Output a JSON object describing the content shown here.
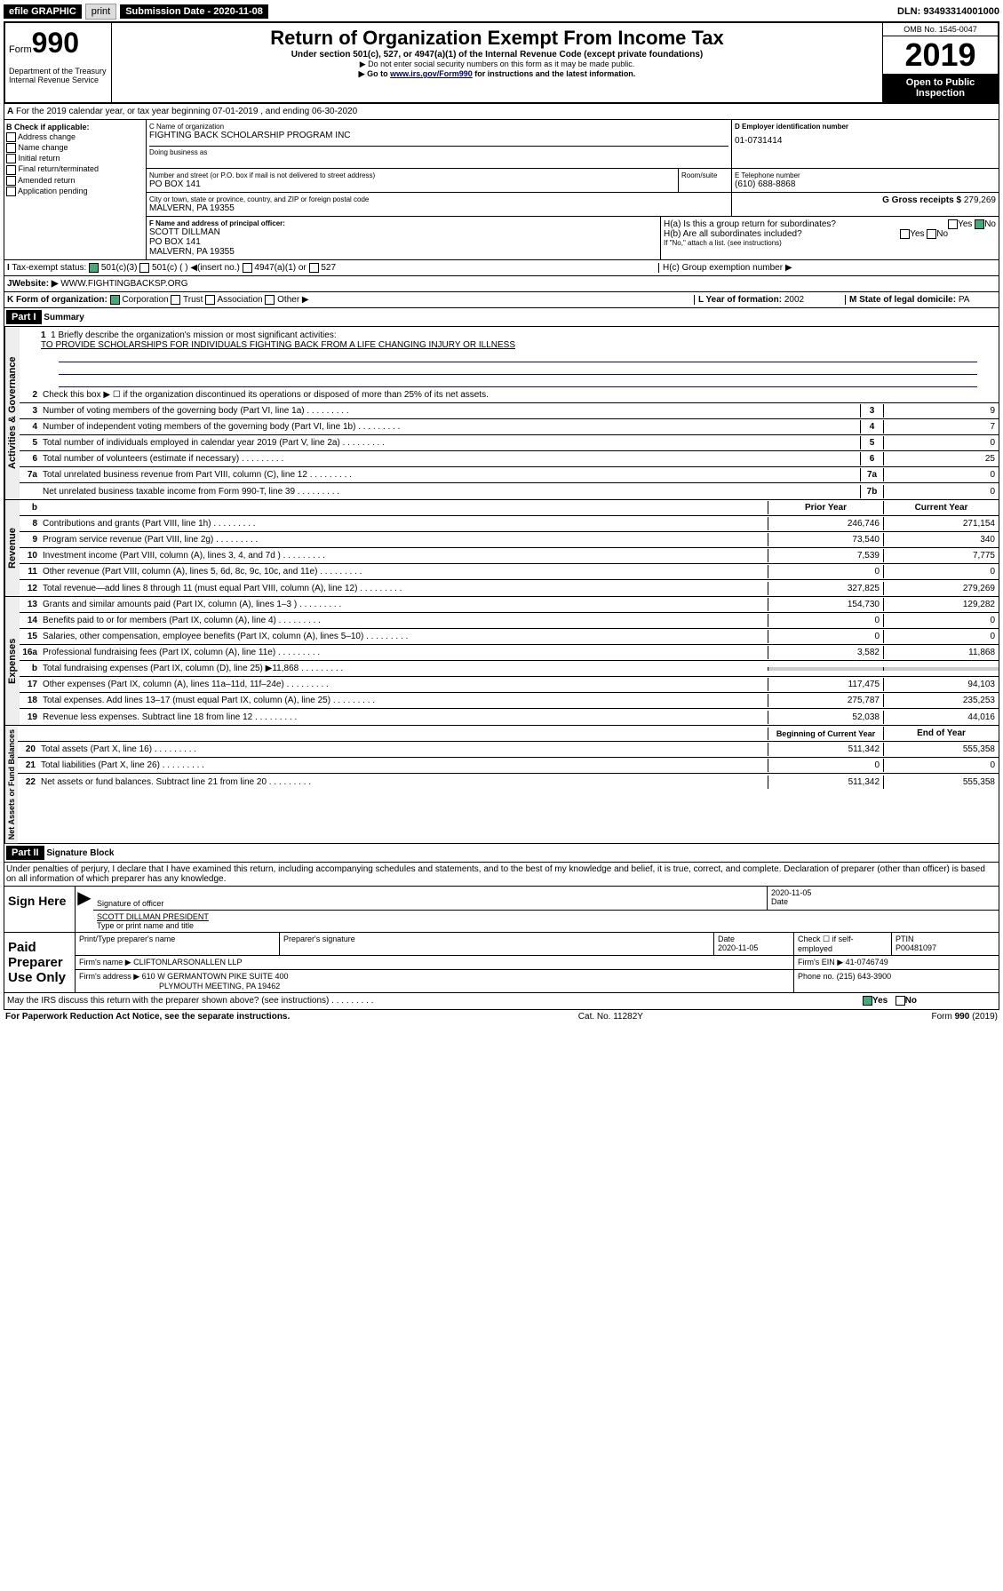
{
  "topbar": {
    "efile": "efile GRAPHIC",
    "print": "print",
    "submission": "Submission Date - 2020-11-08",
    "dln": "DLN: 93493314001000"
  },
  "header": {
    "form_prefix": "Form",
    "form_num": "990",
    "dept": "Department of the Treasury Internal Revenue Service",
    "title": "Return of Organization Exempt From Income Tax",
    "subtitle": "Under section 501(c), 527, or 4947(a)(1) of the Internal Revenue Code (except private foundations)",
    "note1": "▶ Do not enter social security numbers on this form as it may be made public.",
    "note2_pre": "▶ Go to ",
    "note2_link": "www.irs.gov/Form990",
    "note2_post": " for instructions and the latest information.",
    "omb": "OMB No. 1545-0047",
    "year": "2019",
    "open": "Open to Public Inspection"
  },
  "period": "For the 2019 calendar year, or tax year beginning 07-01-2019   , and ending 06-30-2020",
  "boxB": {
    "label": "B Check if applicable:",
    "items": [
      "Address change",
      "Name change",
      "Initial return",
      "Final return/terminated",
      "Amended return",
      "Application pending"
    ]
  },
  "boxC": {
    "name_label": "C Name of organization",
    "name": "FIGHTING BACK SCHOLARSHIP PROGRAM INC",
    "dba_label": "Doing business as",
    "addr_label": "Number and street (or P.O. box if mail is not delivered to street address)",
    "room_label": "Room/suite",
    "addr": "PO BOX 141",
    "city_label": "City or town, state or province, country, and ZIP or foreign postal code",
    "city": "MALVERN, PA  19355"
  },
  "boxD": {
    "label": "D Employer identification number",
    "val": "01-0731414"
  },
  "boxE": {
    "label": "E Telephone number",
    "val": "(610) 688-8868"
  },
  "boxG": {
    "label": "G Gross receipts $",
    "val": "279,269"
  },
  "boxF": {
    "label": "F Name and address of principal officer:",
    "name": "SCOTT DILLMAN",
    "addr1": "PO BOX 141",
    "addr2": "MALVERN, PA  19355"
  },
  "boxH": {
    "a": "H(a)  Is this a group return for subordinates?",
    "b": "H(b)  Are all subordinates included?",
    "b_note": "If \"No,\" attach a list. (see instructions)",
    "c": "H(c)  Group exemption number ▶",
    "yes": "Yes",
    "no": "No"
  },
  "boxI": {
    "label": "Tax-exempt status:",
    "opts": [
      "501(c)(3)",
      "501(c) (  ) ◀(insert no.)",
      "4947(a)(1) or",
      "527"
    ]
  },
  "boxJ": {
    "label": "Website: ▶",
    "val": "WWW.FIGHTINGBACKSP.ORG"
  },
  "boxK": {
    "label": "K Form of organization:",
    "opts": [
      "Corporation",
      "Trust",
      "Association",
      "Other ▶"
    ]
  },
  "boxL": {
    "label": "L Year of formation:",
    "val": "2002"
  },
  "boxM": {
    "label": "M State of legal domicile:",
    "val": "PA"
  },
  "part1": {
    "header": "Part I",
    "title": "Summary",
    "vert_labels": [
      "Activities & Governance",
      "Revenue",
      "Expenses",
      "Net Assets or Fund Balances"
    ],
    "line1_label": "1  Briefly describe the organization's mission or most significant activities:",
    "line1_val": "TO PROVIDE SCHOLARSHIPS FOR INDIVIDUALS FIGHTING BACK FROM A LIFE CHANGING INJURY OR ILLNESS",
    "line2": "Check this box ▶ ☐  if the organization discontinued its operations or disposed of more than 25% of its net assets.",
    "governance": [
      {
        "n": "3",
        "t": "Number of voting members of the governing body (Part VI, line 1a)",
        "c": "3",
        "v": "9"
      },
      {
        "n": "4",
        "t": "Number of independent voting members of the governing body (Part VI, line 1b)",
        "c": "4",
        "v": "7"
      },
      {
        "n": "5",
        "t": "Total number of individuals employed in calendar year 2019 (Part V, line 2a)",
        "c": "5",
        "v": "0"
      },
      {
        "n": "6",
        "t": "Total number of volunteers (estimate if necessary)",
        "c": "6",
        "v": "25"
      },
      {
        "n": "7a",
        "t": "Total unrelated business revenue from Part VIII, column (C), line 12",
        "c": "7a",
        "v": "0"
      },
      {
        "n": "",
        "t": "Net unrelated business taxable income from Form 990-T, line 39",
        "c": "7b",
        "v": "0"
      }
    ],
    "col_prior": "Prior Year",
    "col_current": "Current Year",
    "revenue": [
      {
        "n": "8",
        "t": "Contributions and grants (Part VIII, line 1h)",
        "p": "246,746",
        "c": "271,154"
      },
      {
        "n": "9",
        "t": "Program service revenue (Part VIII, line 2g)",
        "p": "73,540",
        "c": "340"
      },
      {
        "n": "10",
        "t": "Investment income (Part VIII, column (A), lines 3, 4, and 7d )",
        "p": "7,539",
        "c": "7,775"
      },
      {
        "n": "11",
        "t": "Other revenue (Part VIII, column (A), lines 5, 6d, 8c, 9c, 10c, and 11e)",
        "p": "0",
        "c": "0"
      },
      {
        "n": "12",
        "t": "Total revenue—add lines 8 through 11 (must equal Part VIII, column (A), line 12)",
        "p": "327,825",
        "c": "279,269"
      }
    ],
    "expenses": [
      {
        "n": "13",
        "t": "Grants and similar amounts paid (Part IX, column (A), lines 1–3 )",
        "p": "154,730",
        "c": "129,282"
      },
      {
        "n": "14",
        "t": "Benefits paid to or for members (Part IX, column (A), line 4)",
        "p": "0",
        "c": "0"
      },
      {
        "n": "15",
        "t": "Salaries, other compensation, employee benefits (Part IX, column (A), lines 5–10)",
        "p": "0",
        "c": "0"
      },
      {
        "n": "16a",
        "t": "Professional fundraising fees (Part IX, column (A), line 11e)",
        "p": "3,582",
        "c": "11,868"
      },
      {
        "n": "b",
        "t": "Total fundraising expenses (Part IX, column (D), line 25) ▶11,868",
        "p": "",
        "c": ""
      },
      {
        "n": "17",
        "t": "Other expenses (Part IX, column (A), lines 11a–11d, 11f–24e)",
        "p": "117,475",
        "c": "94,103"
      },
      {
        "n": "18",
        "t": "Total expenses. Add lines 13–17 (must equal Part IX, column (A), line 25)",
        "p": "275,787",
        "c": "235,253"
      },
      {
        "n": "19",
        "t": "Revenue less expenses. Subtract line 18 from line 12",
        "p": "52,038",
        "c": "44,016"
      }
    ],
    "col_begin": "Beginning of Current Year",
    "col_end": "End of Year",
    "netassets": [
      {
        "n": "20",
        "t": "Total assets (Part X, line 16)",
        "p": "511,342",
        "c": "555,358"
      },
      {
        "n": "21",
        "t": "Total liabilities (Part X, line 26)",
        "p": "0",
        "c": "0"
      },
      {
        "n": "22",
        "t": "Net assets or fund balances. Subtract line 21 from line 20",
        "p": "511,342",
        "c": "555,358"
      }
    ]
  },
  "part2": {
    "header": "Part II",
    "title": "Signature Block",
    "declaration": "Under penalties of perjury, I declare that I have examined this return, including accompanying schedules and statements, and to the best of my knowledge and belief, it is true, correct, and complete. Declaration of preparer (other than officer) is based on all information of which preparer has any knowledge.",
    "sign_here": "Sign Here",
    "sig_officer": "Signature of officer",
    "date": "Date",
    "date_val": "2020-11-05",
    "officer_name": "SCOTT DILLMAN PRESIDENT",
    "type_name": "Type or print name and title",
    "paid": "Paid Preparer Use Only",
    "prep_name_label": "Print/Type preparer's name",
    "prep_sig_label": "Preparer's signature",
    "prep_date": "2020-11-05",
    "check_self": "Check ☐ if self-employed",
    "ptin_label": "PTIN",
    "ptin": "P00481097",
    "firm_name_label": "Firm's name    ▶",
    "firm_name": "CLIFTONLARSONALLEN LLP",
    "firm_ein_label": "Firm's EIN ▶",
    "firm_ein": "41-0746749",
    "firm_addr_label": "Firm's address ▶",
    "firm_addr1": "610 W GERMANTOWN PIKE SUITE 400",
    "firm_addr2": "PLYMOUTH MEETING, PA  19462",
    "phone_label": "Phone no.",
    "phone": "(215) 643-3900",
    "discuss": "May the IRS discuss this return with the preparer shown above? (see instructions)",
    "yes": "Yes",
    "no": "No"
  },
  "footer": {
    "paperwork": "For Paperwork Reduction Act Notice, see the separate instructions.",
    "cat": "Cat. No. 11282Y",
    "form": "Form 990 (2019)"
  }
}
